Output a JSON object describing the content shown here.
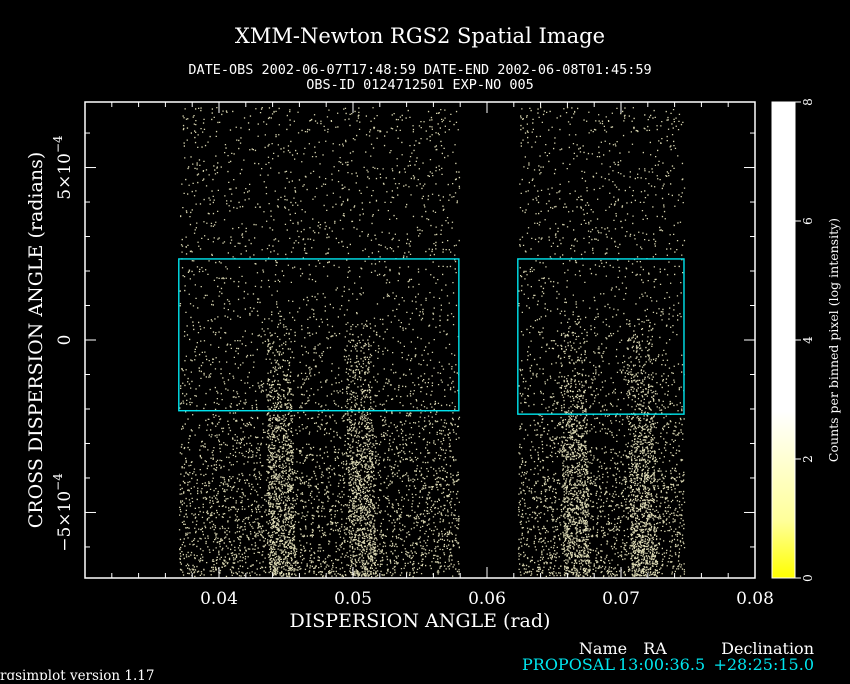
{
  "chart_data": {
    "type": "heatmap",
    "title": "XMM-Newton  RGS2 Spatial Image",
    "subtitle_line1": "DATE-OBS 2002-06-07T17:48:59    DATE-END 2002-06-08T01:45:59",
    "subtitle_line2": "OBS-ID 0124712501 EXP-NO 005",
    "xlabel": "DISPERSION ANGLE (rad)",
    "ylabel": "CROSS DISPERSION ANGLE (radians)",
    "xlim": [
      0.03,
      0.08
    ],
    "ylim": [
      -0.00069,
      0.00069
    ],
    "x_ticks": [
      "0.04",
      "0.05",
      "0.06",
      "0.07",
      "0.08"
    ],
    "x_tick_values": [
      0.04,
      0.05,
      0.06,
      0.07,
      0.08
    ],
    "y_tick_exponent": "−4",
    "y_ticks": [
      {
        "value": 0.0005,
        "mantissa": "5×10",
        "exp": "−4"
      },
      {
        "value": 0,
        "mantissa": "0",
        "exp": ""
      },
      {
        "value": -0.0005,
        "mantissa": "−5×10",
        "exp": "−4"
      }
    ],
    "detector_regions": [
      {
        "x_start": 0.037,
        "x_end": 0.0579
      },
      {
        "x_start": 0.0623,
        "x_end": 0.0747
      }
    ],
    "selection_regions": [
      {
        "x_start": 0.037,
        "x_end": 0.0579,
        "y_top": 0.000235,
        "y_bottom": -0.000205
      },
      {
        "x_start": 0.0623,
        "x_end": 0.0747,
        "y_top": 0.000235,
        "y_bottom": -0.000215
      }
    ],
    "colorbar": {
      "label": "Counts per binned pixel (log intensity)",
      "ticks": [
        "0",
        "2",
        "4",
        "6",
        "8"
      ],
      "range": [
        0,
        8
      ],
      "color_low": "#ffff00",
      "color_high": "#ffffff"
    },
    "colors": {
      "background": "#000000",
      "points": "#fffbd0",
      "selection": "#00e5ee"
    }
  },
  "source_table": {
    "headers": [
      "Name",
      "RA",
      "Declination"
    ],
    "row": [
      "PROPOSAL",
      "13:00:36.5",
      "+28:25:15.0"
    ]
  },
  "footer": {
    "version": "rgsimplot version 1.17"
  }
}
